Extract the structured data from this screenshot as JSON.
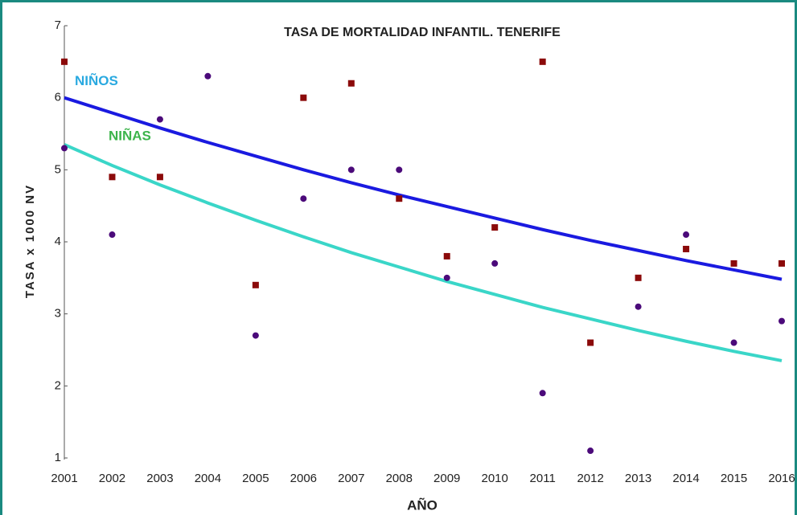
{
  "chart_data": {
    "type": "scatter",
    "title": "TASA DE MORTALIDAD INFANTIL. TENERIFE",
    "x_label": "AÑO",
    "y_label": "TASA x 1000 NV",
    "categories": [
      "2001",
      "2002",
      "2003",
      "2004",
      "2005",
      "2006",
      "2007",
      "2008",
      "2009",
      "2010",
      "2011",
      "2012",
      "2013",
      "2014",
      "2015",
      "2016"
    ],
    "ylim": [
      1,
      7
    ],
    "yticks": [
      1,
      2,
      3,
      4,
      5,
      6,
      7
    ],
    "grid": false,
    "series": [
      {
        "marker": "square",
        "color": "#8b0a0a",
        "values": [
          6.5,
          4.9,
          4.9,
          null,
          3.4,
          6.0,
          6.2,
          4.6,
          3.8,
          4.2,
          6.5,
          2.6,
          3.5,
          3.9,
          3.7,
          3.7
        ]
      },
      {
        "marker": "circle",
        "color": "#4b0a7a",
        "values": [
          5.3,
          4.1,
          5.7,
          6.3,
          2.7,
          4.6,
          5.0,
          5.0,
          3.5,
          3.7,
          1.9,
          1.1,
          3.1,
          4.1,
          2.6,
          2.9
        ]
      },
      {
        "marker": "line",
        "name": "NIÑOS",
        "color": "#1a1ae0",
        "label_color": "#29a9e0",
        "values": [
          6.0,
          5.79,
          5.58,
          5.38,
          5.19,
          5.0,
          4.82,
          4.65,
          4.49,
          4.33,
          4.17,
          4.02,
          3.88,
          3.74,
          3.61,
          3.48
        ]
      },
      {
        "marker": "line",
        "name": "NIÑAS",
        "color": "#3ad6c8",
        "label_color": "#3cb44b",
        "values": [
          5.35,
          5.06,
          4.79,
          4.54,
          4.3,
          4.07,
          3.85,
          3.65,
          3.45,
          3.27,
          3.09,
          2.93,
          2.77,
          2.62,
          2.48,
          2.35
        ]
      }
    ]
  }
}
